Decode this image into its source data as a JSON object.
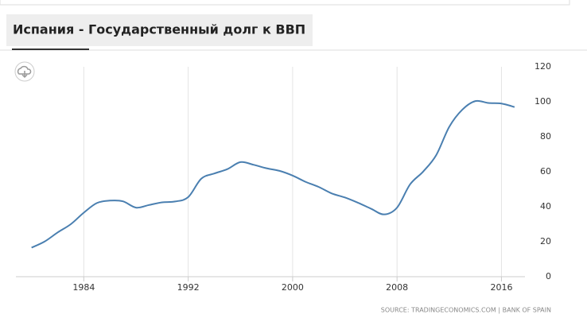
{
  "chart_data": {
    "type": "line",
    "title": "Испания - Государственный долг к ВВП",
    "source": "SOURCE: TRADINGECONOMICS.COM  |  BANK OF SPAIN",
    "x": [
      1980,
      1981,
      1982,
      1983,
      1984,
      1985,
      1986,
      1987,
      1988,
      1989,
      1990,
      1991,
      1992,
      1993,
      1994,
      1995,
      1996,
      1997,
      1998,
      1999,
      2000,
      2001,
      2002,
      2003,
      2004,
      2005,
      2006,
      2007,
      2008,
      2009,
      2010,
      2011,
      2012,
      2013,
      2014,
      2015,
      2016,
      2017
    ],
    "series": [
      {
        "color": "#4a7fb0",
        "values": [
          16.6,
          20.1,
          25.3,
          30.0,
          36.6,
          42.1,
          43.5,
          43.1,
          39.5,
          41.0,
          42.5,
          43.0,
          45.5,
          56.0,
          59.0,
          61.5,
          65.5,
          64.0,
          62.0,
          60.5,
          57.8,
          54.2,
          51.3,
          47.6,
          45.3,
          42.3,
          38.9,
          35.6,
          39.5,
          52.8,
          60.1,
          69.5,
          85.7,
          95.5,
          100.4,
          99.3,
          99.0,
          97.0
        ]
      }
    ],
    "xlim": [
      1978.8,
      2017.8
    ],
    "xticks": [
      1984,
      1992,
      2000,
      2008,
      2016
    ],
    "ylim": [
      0,
      120
    ],
    "yticks": [
      0,
      20,
      40,
      60,
      80,
      100,
      120
    ],
    "grid": true
  }
}
